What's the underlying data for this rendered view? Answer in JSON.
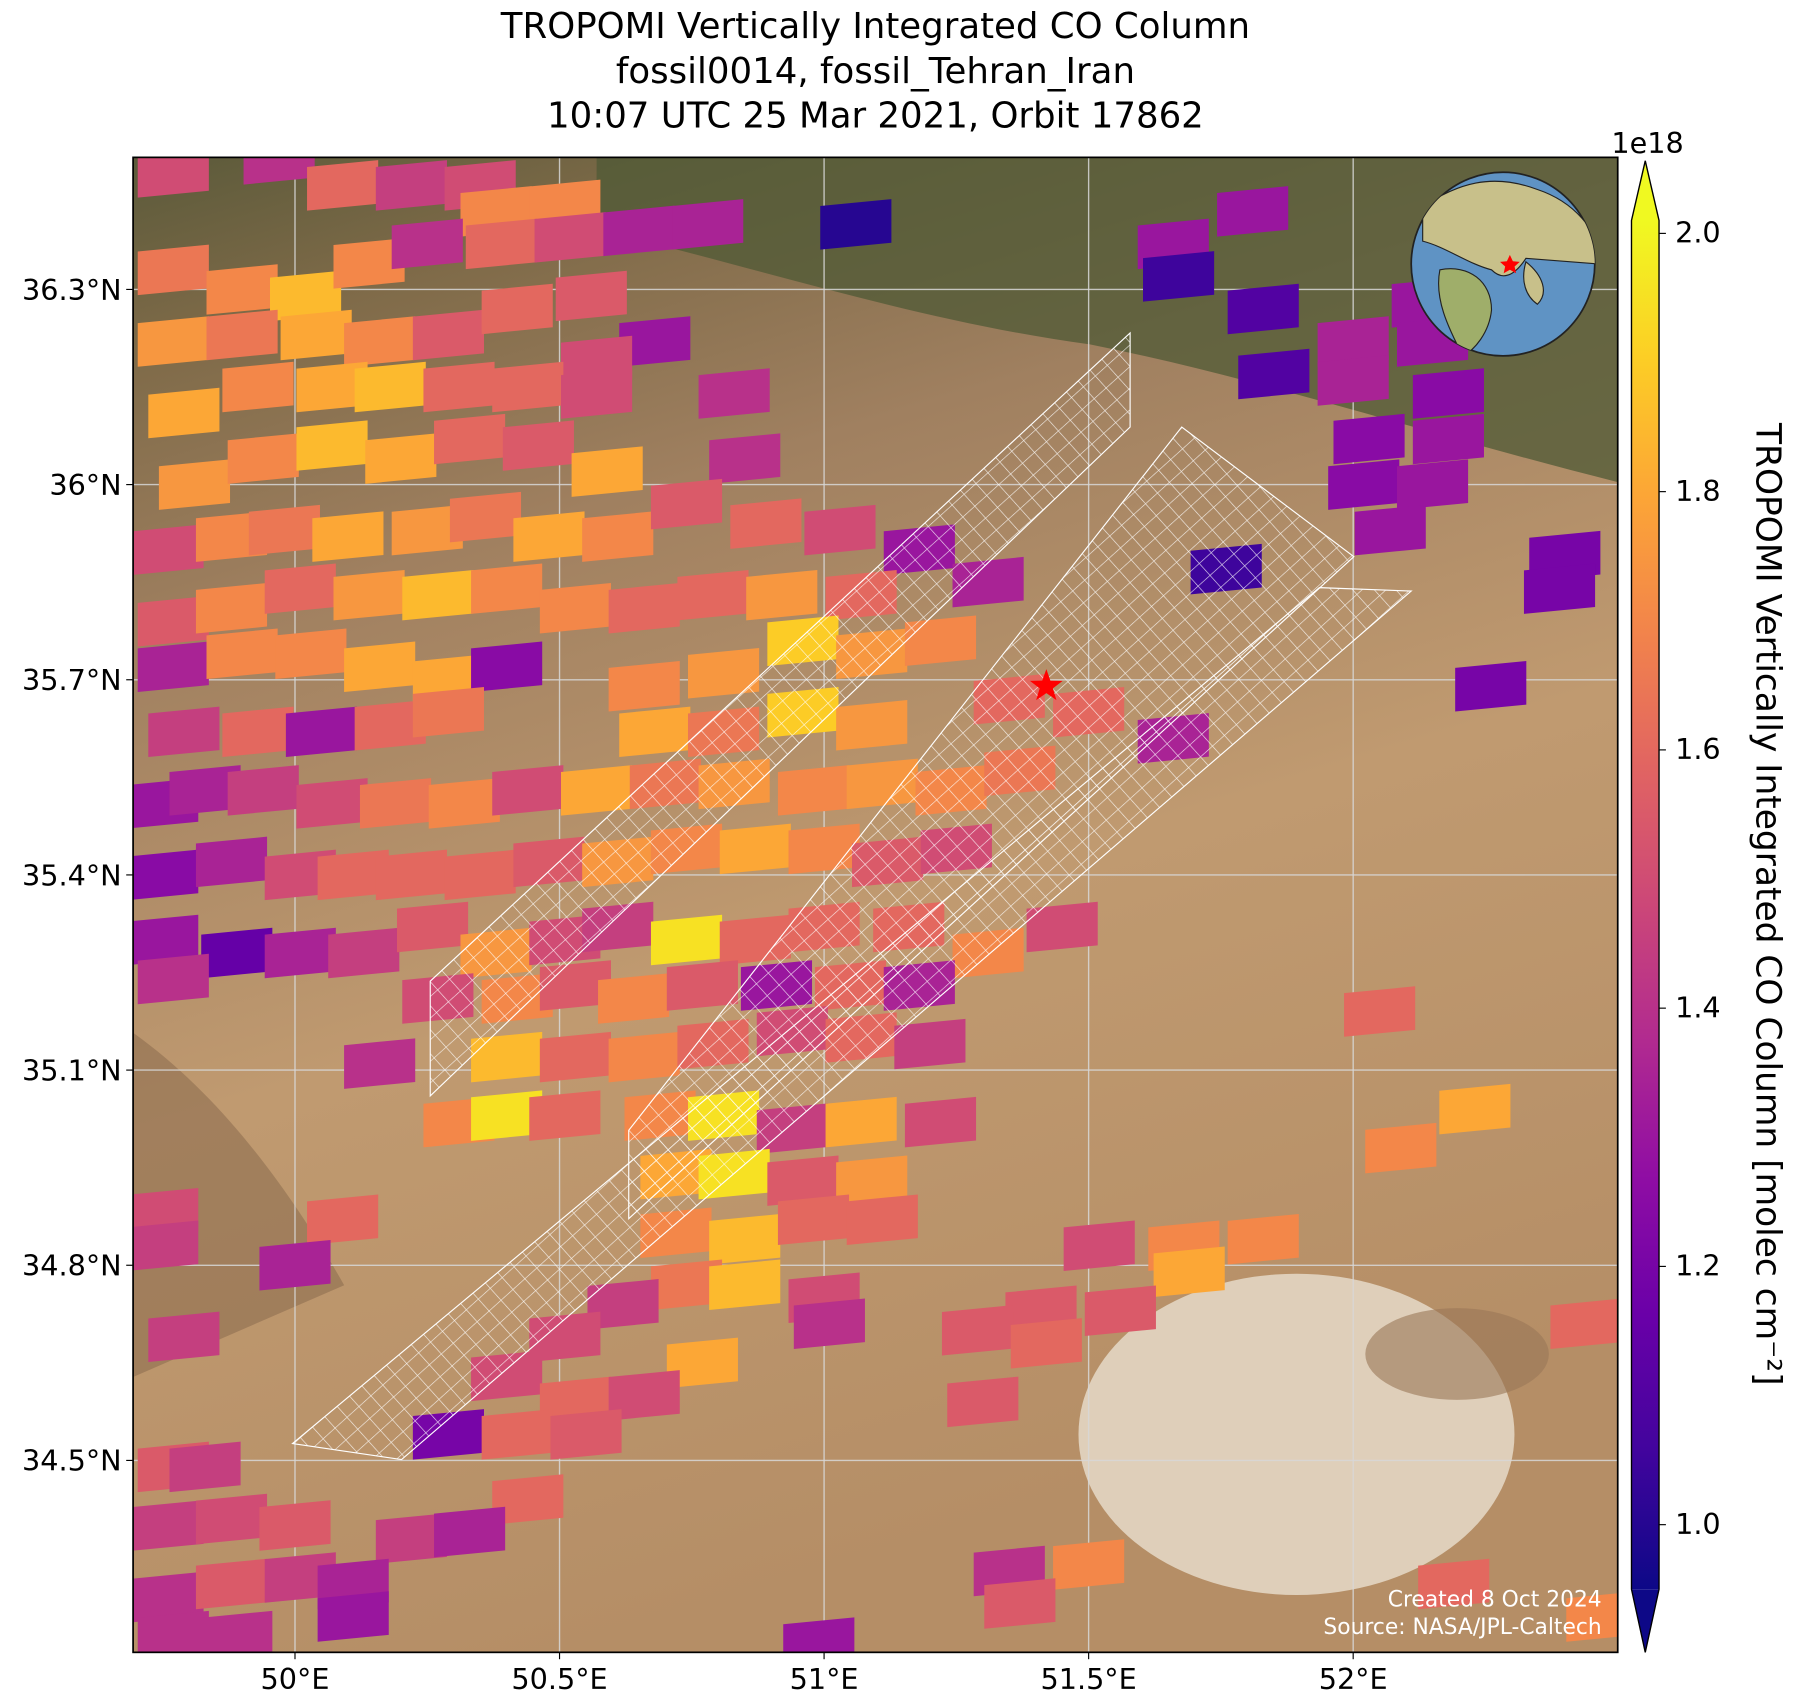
{
  "chart_data": {
    "type": "pixel_map",
    "title": [
      "TROPOMI Vertically Integrated CO Column",
      "fossil0014, fossil_Tehran_Iran",
      "10:07 UTC 25 Mar 2021, Orbit 17862"
    ],
    "xlim": [
      49.694,
      52.5
    ],
    "ylim": [
      34.205,
      36.503
    ],
    "xticks": [
      {
        "value": 50,
        "label": "50°E"
      },
      {
        "value": 50.5,
        "label": "50.5°E"
      },
      {
        "value": 51,
        "label": "51°E"
      },
      {
        "value": 51.5,
        "label": "51.5°E"
      },
      {
        "value": 52,
        "label": "52°E"
      }
    ],
    "yticks": [
      {
        "value": 34.5,
        "label": "34.5°N"
      },
      {
        "value": 34.8,
        "label": "34.8°N"
      },
      {
        "value": 35.1,
        "label": "35.1°N"
      },
      {
        "value": 35.4,
        "label": "35.4°N"
      },
      {
        "value": 35.7,
        "label": "35.7°N"
      },
      {
        "value": 36,
        "label": "36°N"
      },
      {
        "value": 36.3,
        "label": "36.3°N"
      }
    ],
    "grid": true,
    "colorbar": {
      "label": "TROPOMI Vertically Integrated CO Column [molec cm⁻²]",
      "offset_label": "1e18",
      "colormap": "plasma",
      "extend": "both",
      "clim": [
        0.95,
        2.01
      ],
      "ticks": [
        {
          "value": 1,
          "label": "1.0"
        },
        1.2,
        1.4,
        1.6,
        1.8,
        {
          "value": 2,
          "label": "2.0"
        }
      ]
    },
    "target": {
      "lon": 51.42,
      "lat": 35.69,
      "color": "#ff0000"
    },
    "annotations": [
      "Created 8 Oct 2024",
      "Source: NASA/JPL-Caltech"
    ],
    "x": [
      49.77,
      49.97,
      50.09,
      50.22,
      50.35,
      50.38,
      50.51,
      49.77,
      49.9,
      50.02,
      50.14,
      50.25,
      50.39,
      50.52,
      50.65,
      50.78,
      51.06,
      49.77,
      49.9,
      50.04,
      50.16,
      50.29,
      50.42,
      50.56,
      50.68,
      50.57,
      50.83,
      49.79,
      49.93,
      50.07,
      50.18,
      50.31,
      50.44,
      50.57,
      49.81,
      49.94,
      50.07,
      50.2,
      50.33,
      50.46,
      50.59,
      50.85,
      49.76,
      49.88,
      49.98,
      50.1,
      50.25,
      50.36,
      50.48,
      50.61,
      50.74,
      50.89,
      51.03,
      51.18,
      51.31,
      49.77,
      49.88,
      50.01,
      50.14,
      50.27,
      50.4,
      50.53,
      50.66,
      50.79,
      50.92,
      51.07,
      49.77,
      49.9,
      50.03,
      50.16,
      50.29,
      50.4,
      50.66,
      50.81,
      50.96,
      51.09,
      51.22,
      49.79,
      49.93,
      50.05,
      50.18,
      50.29,
      50.68,
      50.81,
      50.96,
      51.09,
      51.35,
      51.5,
      51.66,
      49.75,
      49.83,
      49.94,
      50.07,
      50.19,
      50.32,
      50.44,
      50.57,
      50.7,
      50.83,
      50.98,
      51.11,
      51.24,
      51.37,
      49.75,
      49.88,
      50.01,
      50.11,
      50.22,
      50.35,
      50.48,
      50.61,
      50.74,
      50.87,
      51.0,
      51.12,
      51.25,
      49.75,
      49.89,
      50.01,
      50.13,
      50.26,
      50.38,
      50.51,
      50.61,
      50.74,
      50.87,
      51.0,
      51.16,
      51.31,
      51.45,
      49.77,
      50.27,
      50.42,
      50.53,
      50.64,
      50.77,
      50.91,
      51.05,
      51.18,
      50.16,
      50.4,
      50.53,
      50.66,
      50.79,
      50.94,
      51.07,
      51.2,
      52.05,
      50.31,
      50.4,
      50.51,
      50.69,
      50.81,
      50.94,
      51.07,
      51.22,
      52.23,
      50.72,
      50.83,
      50.96,
      51.09,
      52.09,
      49.75,
      50.09,
      50.72,
      50.85,
      50.98,
      51.11,
      49.75,
      50.0,
      50.74,
      50.85,
      51.52,
      51.68,
      51.83,
      51.69,
      50.62,
      51.0,
      51.01,
      51.41,
      51.56,
      49.79,
      50.51,
      50.77,
      51.29,
      51.42,
      50.4,
      50.53,
      50.66,
      51.3,
      52.44,
      50.29,
      50.42,
      50.55,
      49.77,
      49.83,
      50.44,
      49.76,
      49.88,
      50.0,
      50.22,
      50.33,
      52.19,
      49.76,
      49.88,
      50.01,
      50.11,
      49.77,
      49.89,
      50.11,
      51.35,
      51.5,
      51.37,
      50.99,
      52.47,
      51.81,
      51.66,
      51.67,
      51.83,
      51.85,
      52.0,
      52.14,
      52.15,
      52.0,
      52.18,
      52.03,
      52.18,
      52.02,
      52.15,
      52.07,
      52.4,
      52.39,
      51.76,
      52.26
    ],
    "y": [
      36.48,
      36.5,
      36.46,
      36.46,
      36.46,
      36.42,
      36.43,
      36.33,
      36.3,
      36.29,
      36.34,
      36.37,
      36.37,
      36.38,
      36.39,
      36.4,
      36.4,
      36.22,
      36.23,
      36.23,
      36.22,
      36.23,
      36.27,
      36.29,
      36.22,
      36.19,
      36.14,
      36.11,
      36.15,
      36.15,
      36.15,
      36.15,
      36.15,
      36.14,
      36.0,
      36.04,
      36.06,
      36.04,
      36.07,
      36.06,
      36.02,
      36.04,
      35.9,
      35.92,
      35.93,
      35.92,
      35.93,
      35.95,
      35.92,
      35.92,
      35.97,
      35.94,
      35.93,
      35.9,
      35.85,
      35.79,
      35.81,
      35.84,
      35.83,
      35.83,
      35.84,
      35.81,
      35.81,
      35.83,
      35.83,
      35.83,
      35.72,
      35.74,
      35.74,
      35.72,
      35.7,
      35.72,
      35.69,
      35.71,
      35.76,
      35.74,
      35.76,
      35.62,
      35.62,
      35.62,
      35.63,
      35.65,
      35.62,
      35.62,
      35.65,
      35.63,
      35.67,
      35.65,
      35.61,
      35.51,
      35.53,
      35.53,
      35.51,
      35.51,
      35.51,
      35.53,
      35.53,
      35.54,
      35.54,
      35.53,
      35.54,
      35.53,
      35.56,
      35.4,
      35.42,
      35.4,
      35.4,
      35.4,
      35.4,
      35.42,
      35.42,
      35.44,
      35.44,
      35.44,
      35.42,
      35.44,
      35.3,
      35.28,
      35.28,
      35.28,
      35.32,
      35.28,
      35.3,
      35.32,
      35.3,
      35.3,
      35.32,
      35.32,
      35.28,
      35.32,
      35.24,
      35.21,
      35.21,
      35.23,
      35.21,
      35.23,
      35.23,
      35.23,
      35.23,
      35.11,
      35.12,
      35.12,
      35.12,
      35.14,
      35.16,
      35.15,
      35.14,
      35.19,
      35.02,
      35.03,
      35.03,
      35.03,
      35.03,
      35.01,
      35.02,
      35.02,
      35.04,
      34.94,
      34.94,
      34.93,
      34.93,
      34.98,
      34.88,
      34.87,
      34.85,
      34.84,
      34.87,
      34.87,
      34.83,
      34.8,
      34.77,
      34.77,
      34.83,
      34.83,
      34.84,
      34.79,
      34.74,
      34.75,
      34.71,
      34.73,
      34.73,
      34.69,
      34.69,
      34.65,
      34.7,
      34.68,
      34.63,
      34.59,
      34.6,
      34.59,
      34.71,
      34.54,
      34.54,
      34.54,
      34.49,
      34.49,
      34.44,
      34.4,
      34.41,
      34.4,
      34.38,
      34.39,
      34.31,
      34.29,
      34.31,
      34.32,
      34.31,
      34.23,
      34.23,
      34.26,
      34.33,
      34.34,
      34.28,
      34.22,
      34.26,
      36.42,
      36.37,
      36.32,
      36.27,
      36.17,
      36.22,
      36.28,
      36.22,
      36.16,
      36.14,
      36.07,
      36.07,
      36.0,
      36.0,
      35.93,
      35.89,
      35.84,
      35.87,
      35.69
    ],
    "values": [
      1.5,
      1.4,
      1.6,
      1.45,
      1.5,
      1.7,
      1.7,
      1.65,
      1.7,
      1.85,
      1.7,
      1.4,
      1.6,
      1.5,
      1.35,
      1.35,
      1.0,
      1.75,
      1.65,
      1.8,
      1.7,
      1.55,
      1.6,
      1.55,
      1.3,
      1.5,
      1.4,
      1.8,
      1.7,
      1.8,
      1.85,
      1.6,
      1.6,
      1.5,
      1.75,
      1.7,
      1.85,
      1.8,
      1.6,
      1.55,
      1.8,
      1.4,
      1.5,
      1.7,
      1.65,
      1.8,
      1.75,
      1.65,
      1.8,
      1.7,
      1.55,
      1.6,
      1.5,
      1.3,
      1.35,
      1.55,
      1.7,
      1.6,
      1.75,
      1.85,
      1.7,
      1.7,
      1.6,
      1.6,
      1.75,
      1.6,
      1.35,
      1.7,
      1.7,
      1.8,
      1.8,
      1.25,
      1.7,
      1.75,
      1.9,
      1.75,
      1.7,
      1.45,
      1.6,
      1.3,
      1.6,
      1.65,
      1.8,
      1.65,
      1.9,
      1.75,
      1.6,
      1.6,
      1.35,
      1.3,
      1.35,
      1.45,
      1.5,
      1.65,
      1.7,
      1.5,
      1.8,
      1.65,
      1.75,
      1.7,
      1.75,
      1.7,
      1.65,
      1.25,
      1.35,
      1.5,
      1.6,
      1.6,
      1.6,
      1.55,
      1.75,
      1.7,
      1.8,
      1.7,
      1.55,
      1.5,
      1.3,
      1.15,
      1.35,
      1.45,
      1.55,
      1.75,
      1.5,
      1.45,
      1.95,
      1.6,
      1.6,
      1.6,
      1.7,
      1.5,
      1.4,
      1.5,
      1.7,
      1.55,
      1.7,
      1.55,
      1.3,
      1.6,
      1.35,
      1.4,
      1.85,
      1.6,
      1.7,
      1.6,
      1.5,
      1.6,
      1.45,
      1.6,
      1.7,
      1.95,
      1.6,
      1.7,
      1.95,
      1.45,
      1.8,
      1.5,
      1.8,
      1.8,
      1.95,
      1.55,
      1.75,
      1.7,
      1.5,
      1.6,
      1.7,
      1.85,
      1.6,
      1.6,
      1.45,
      1.35,
      1.65,
      1.85,
      1.5,
      1.7,
      1.7,
      1.8,
      1.45,
      1.5,
      1.4,
      1.55,
      1.55,
      1.45,
      1.5,
      1.8,
      1.55,
      1.6,
      1.5,
      1.6,
      1.5,
      1.55,
      1.6,
      1.2,
      1.6,
      1.55,
      1.55,
      1.45,
      1.6,
      1.45,
      1.5,
      1.55,
      1.45,
      1.35,
      1.6,
      1.4,
      1.55,
      1.45,
      1.35,
      1.4,
      1.4,
      1.3,
      1.4,
      1.7,
      1.55,
      1.3,
      1.7,
      1.3,
      1.3,
      1.05,
      1.1,
      1.1,
      1.35,
      1.3,
      1.3,
      1.35,
      1.25,
      1.25,
      1.3,
      1.25,
      1.3,
      1.3,
      1.2,
      1.2,
      1.05,
      1.2
    ]
  }
}
